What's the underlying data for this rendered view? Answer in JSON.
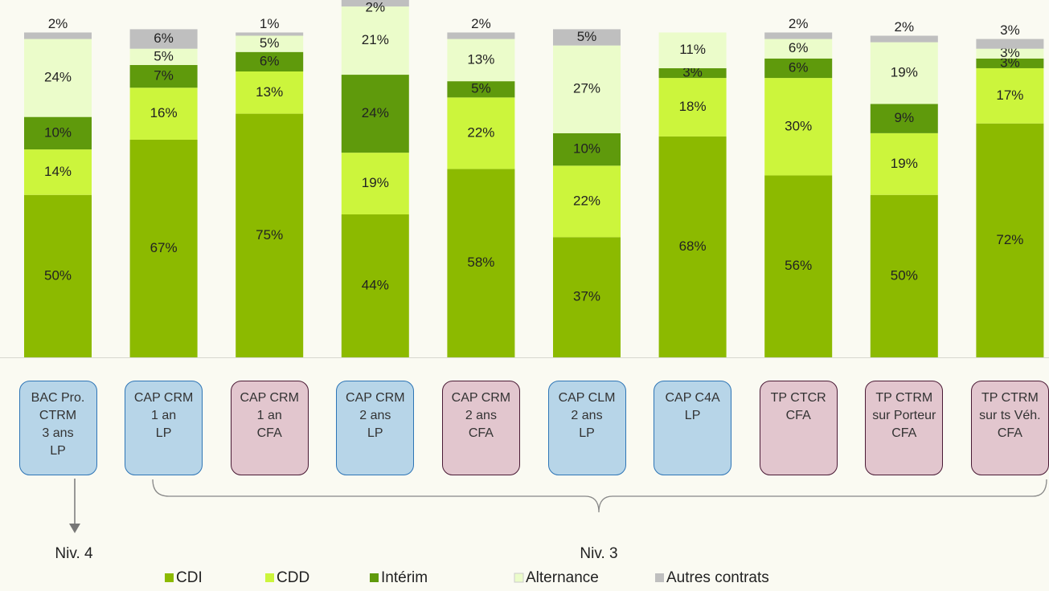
{
  "chart_data": {
    "type": "stacked_bar",
    "categories": [
      "BAC Pro.\nCTRM\n3 ans\nLP",
      "CAP CRM\n1 an\nLP",
      "CAP CRM\n1 an\nCFA",
      "CAP CRM\n2 ans\nLP",
      "CAP CRM\n2 ans\nCFA",
      "CAP CLM\n2 ans\nLP",
      "CAP C4A\nLP",
      "TP CTCR\nCFA",
      "TP CTRM\nsur Porteur\nCFA",
      "TP CTRM\nsur ts Véh.\nCFA"
    ],
    "category_colors": [
      "#b7d5e8",
      "#b7d5e8",
      "#e2c6ce",
      "#b7d5e8",
      "#e2c6ce",
      "#b7d5e8",
      "#b7d5e8",
      "#e2c6ce",
      "#e2c6ce",
      "#e2c6ce"
    ],
    "category_border_colors": [
      "#2e75b6",
      "#2e75b6",
      "#4a1a35",
      "#2e75b6",
      "#4a1a35",
      "#2e75b6",
      "#2e75b6",
      "#4a1a35",
      "#4a1a35",
      "#4a1a35"
    ],
    "series": [
      {
        "name": "CDI",
        "color": "#8cba00",
        "values": [
          50,
          67,
          75,
          44,
          58,
          37,
          68,
          56,
          50,
          72
        ],
        "value_labels": [
          "50%",
          "67%",
          "75%",
          "44%",
          "58%",
          "37%",
          "68%",
          "56%",
          "50%",
          "72%"
        ]
      },
      {
        "name": "CDD",
        "color": "#ccf53c",
        "values": [
          14,
          16,
          13,
          19,
          22,
          22,
          18,
          30,
          19,
          17
        ],
        "value_labels": [
          "14%",
          "16%",
          "13%",
          "19%",
          "22%",
          "22%",
          "18%",
          "30%",
          "19%",
          "17%"
        ]
      },
      {
        "name": "Intérim",
        "color": "#5f9a0c",
        "values": [
          10,
          7,
          6,
          24,
          5,
          10,
          3,
          6,
          9,
          3
        ],
        "value_labels": [
          "10%",
          "7%",
          "6%",
          "24%",
          "5%",
          "10%",
          "3%",
          "6%",
          "9%",
          "3%"
        ]
      },
      {
        "name": "Alternance",
        "color": "#ebfcca",
        "values": [
          24,
          5,
          5,
          21,
          13,
          27,
          11,
          6,
          19,
          3
        ],
        "value_labels": [
          "24%",
          "5%",
          "5%",
          "21%",
          "13%",
          "27%",
          "11%",
          "6%",
          "19%",
          "3%"
        ]
      },
      {
        "name": "Autres contrats",
        "color": "#bfbfbf",
        "values": [
          2,
          6,
          1,
          2,
          2,
          5,
          null,
          2,
          2,
          3
        ],
        "value_labels": [
          "2%",
          "6%",
          "1%",
          "2%",
          "2%",
          "5%",
          null,
          "2%",
          "2%",
          "3%"
        ]
      }
    ],
    "ylim": [
      0,
      110
    ],
    "annotations": [
      "Niv. 4",
      "Niv. 3"
    ]
  }
}
